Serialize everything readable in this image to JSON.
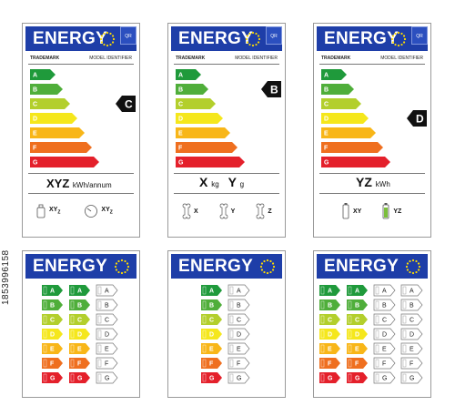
{
  "watermark_id": "1853996158",
  "energy_word": "ENERGY",
  "qr_text": "QR",
  "trademark": "TRADEMARK",
  "model_identifier": "MODEL IDENTIFIER",
  "classes": [
    "A",
    "B",
    "C",
    "D",
    "E",
    "F",
    "G"
  ],
  "class_colors": [
    "#1f9a3b",
    "#4fae3a",
    "#b3cf2c",
    "#f5e71c",
    "#f8b618",
    "#ef6f1f",
    "#e4202b"
  ],
  "labels_top": [
    {
      "selected_class": "C",
      "consumption_main": "XYZ",
      "consumption_unit": "kWh/annum",
      "icons": [
        {
          "name": "bottle-icon",
          "main": "XY",
          "sub": "Z"
        },
        {
          "name": "clock-icon",
          "main": "XY",
          "sub": "Z"
        }
      ]
    },
    {
      "selected_class": "B",
      "consumption_x": "X",
      "consumption_x_unit": "kg",
      "consumption_y": "Y",
      "consumption_y_unit": "g",
      "icons": [
        {
          "name": "bone-icon",
          "main": "X"
        },
        {
          "name": "bone-icon",
          "main": "Y"
        },
        {
          "name": "bone-icon",
          "main": "Z"
        }
      ]
    },
    {
      "selected_class": "D",
      "consumption_main": "YZ",
      "consumption_unit": "kWh",
      "icons": [
        {
          "name": "battery-icon",
          "main": "XY"
        },
        {
          "name": "battery-charging-icon",
          "main": "YZ"
        }
      ]
    }
  ],
  "labels_bottom": [
    {
      "columns": [
        "color",
        "color",
        "outline"
      ]
    },
    {
      "columns": [
        "color",
        "outline"
      ]
    },
    {
      "columns": [
        "color",
        "color",
        "outline",
        "outline"
      ]
    }
  ]
}
